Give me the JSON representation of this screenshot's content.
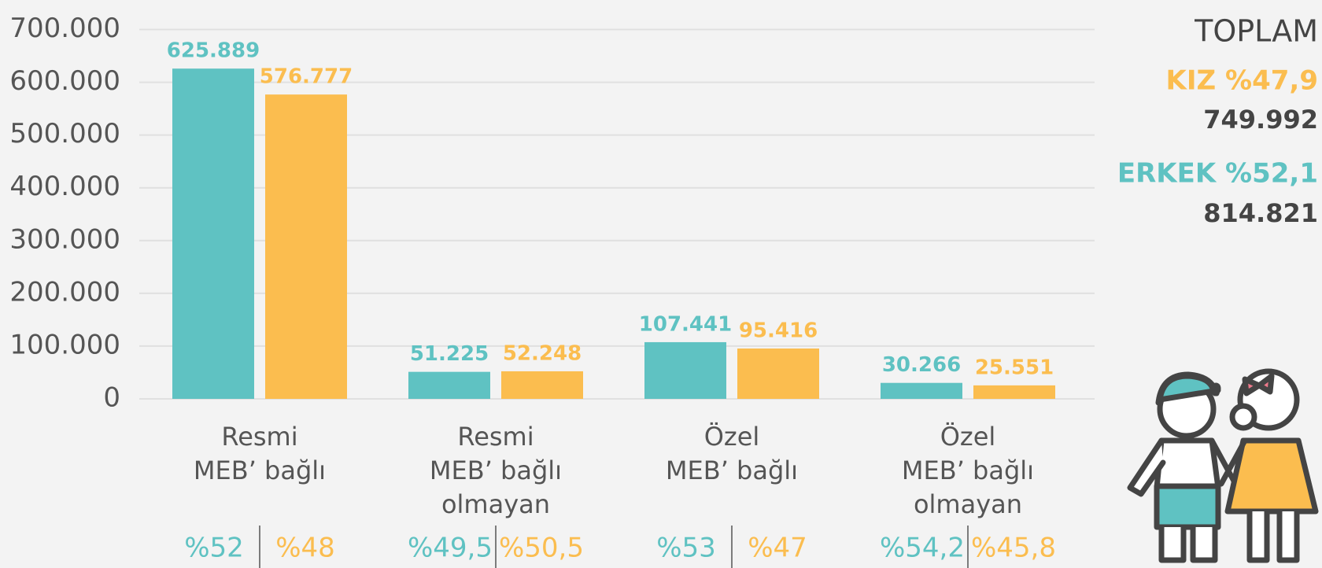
{
  "chart_data": {
    "type": "bar",
    "categories": [
      [
        "Resmi",
        "MEB’ bağlı"
      ],
      [
        "Resmi",
        "MEB’ bağlı",
        "olmayan"
      ],
      [
        "Özel",
        "MEB’ bağlı"
      ],
      [
        "Özel",
        "MEB’ bağlı",
        "olmayan"
      ]
    ],
    "series": [
      {
        "color": "#5fc2c2",
        "values": [
          625889,
          51225,
          107441,
          30266
        ],
        "value_labels": [
          "625.889",
          "51.225",
          "107.441",
          "30.266"
        ],
        "percent_labels": [
          "%52",
          "%49,5",
          "%53",
          "%54,2"
        ]
      },
      {
        "color": "#fbbd4f",
        "values": [
          576777,
          52248,
          95416,
          25551
        ],
        "value_labels": [
          "576.777",
          "52.248",
          "95.416",
          "25.551"
        ],
        "percent_labels": [
          "%48",
          "%50,5",
          "%47",
          "%45,8"
        ]
      }
    ],
    "ylim": [
      0,
      700000
    ],
    "yticks": [
      0,
      {
        "value": 100000,
        "label": "100.000"
      },
      {
        "value": 200000,
        "label": "200.000"
      },
      {
        "value": 300000,
        "label": "300.000"
      },
      {
        "value": 400000,
        "label": "400.000"
      },
      {
        "value": 500000,
        "label": "500.000"
      },
      {
        "value": 600000,
        "label": "600.000"
      },
      {
        "value": 700000,
        "label": "700.000"
      }
    ],
    "grid": true
  },
  "summary": {
    "title": "TOPLAM",
    "girls_label": "KIZ %47,9",
    "girls_total": "749.992",
    "boys_label": "ERKEK %52,1",
    "boys_total": "814.821"
  }
}
